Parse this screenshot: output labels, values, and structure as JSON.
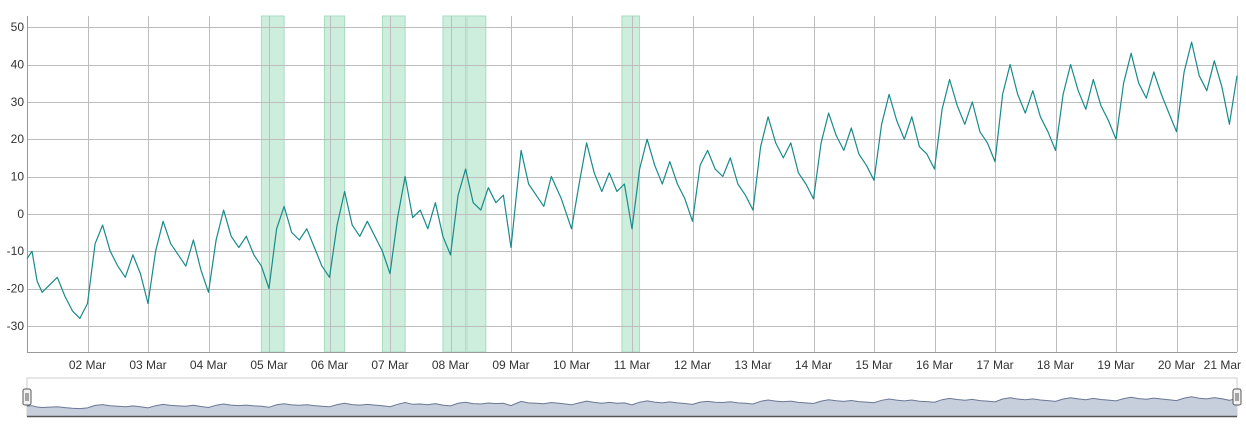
{
  "chart_data": {
    "type": "line",
    "title": "",
    "xlabel": "",
    "ylabel": "",
    "x_range": [
      "2021-03-01T00:00",
      "2021-03-21T00:00"
    ],
    "ylim": [
      -37,
      53
    ],
    "y_ticks": [
      -30,
      -20,
      -10,
      0,
      10,
      20,
      30,
      40,
      50
    ],
    "x_ticks": [
      {
        "date": "2021-03-02T00:00",
        "label": "02 Mar"
      },
      {
        "date": "2021-03-03T00:00",
        "label": "03 Mar"
      },
      {
        "date": "2021-03-04T00:00",
        "label": "04 Mar"
      },
      {
        "date": "2021-03-05T00:00",
        "label": "05 Mar"
      },
      {
        "date": "2021-03-06T00:00",
        "label": "06 Mar"
      },
      {
        "date": "2021-03-07T00:00",
        "label": "07 Mar"
      },
      {
        "date": "2021-03-08T00:00",
        "label": "08 Mar"
      },
      {
        "date": "2021-03-09T00:00",
        "label": "09 Mar"
      },
      {
        "date": "2021-03-10T00:00",
        "label": "10 Mar"
      },
      {
        "date": "2021-03-11T00:00",
        "label": "11 Mar"
      },
      {
        "date": "2021-03-12T00:00",
        "label": "12 Mar"
      },
      {
        "date": "2021-03-13T00:00",
        "label": "13 Mar"
      },
      {
        "date": "2021-03-14T00:00",
        "label": "14 Mar"
      },
      {
        "date": "2021-03-15T00:00",
        "label": "15 Mar"
      },
      {
        "date": "2021-03-16T00:00",
        "label": "16 Mar"
      },
      {
        "date": "2021-03-17T00:00",
        "label": "17 Mar"
      },
      {
        "date": "2021-03-18T00:00",
        "label": "18 Mar"
      },
      {
        "date": "2021-03-19T00:00",
        "label": "19 Mar"
      },
      {
        "date": "2021-03-20T00:00",
        "label": "20 Mar"
      },
      {
        "date": "2021-03-21T00:00",
        "label": "21 Mar"
      }
    ],
    "grid": true,
    "highlight_bands": [
      {
        "start": "2021-03-04T21:00",
        "end": "2021-03-05T06:00"
      },
      {
        "start": "2021-03-05T22:00",
        "end": "2021-03-06T06:00"
      },
      {
        "start": "2021-03-06T21:00",
        "end": "2021-03-07T06:00"
      },
      {
        "start": "2021-03-07T21:00",
        "end": "2021-03-08T06:00"
      },
      {
        "start": "2021-03-08T06:30",
        "end": "2021-03-08T14:00"
      },
      {
        "start": "2021-03-10T20:00",
        "end": "2021-03-11T03:00"
      }
    ],
    "series": [
      {
        "color": "#1a8a8a",
        "points": [
          [
            "2021-03-01T00:00",
            -12
          ],
          [
            "2021-03-01T02:00",
            -10
          ],
          [
            "2021-03-01T04:00",
            -18
          ],
          [
            "2021-03-01T06:00",
            -21
          ],
          [
            "2021-03-01T09:00",
            -19
          ],
          [
            "2021-03-01T12:00",
            -17
          ],
          [
            "2021-03-01T15:00",
            -22
          ],
          [
            "2021-03-01T18:00",
            -26
          ],
          [
            "2021-03-01T21:00",
            -28
          ],
          [
            "2021-03-02T00:00",
            -24
          ],
          [
            "2021-03-02T03:00",
            -8
          ],
          [
            "2021-03-02T06:00",
            -3
          ],
          [
            "2021-03-02T09:00",
            -10
          ],
          [
            "2021-03-02T12:00",
            -14
          ],
          [
            "2021-03-02T15:00",
            -17
          ],
          [
            "2021-03-02T18:00",
            -11
          ],
          [
            "2021-03-02T21:00",
            -16
          ],
          [
            "2021-03-03T00:00",
            -24
          ],
          [
            "2021-03-03T03:00",
            -10
          ],
          [
            "2021-03-03T06:00",
            -2
          ],
          [
            "2021-03-03T09:00",
            -8
          ],
          [
            "2021-03-03T12:00",
            -11
          ],
          [
            "2021-03-03T15:00",
            -14
          ],
          [
            "2021-03-03T18:00",
            -7
          ],
          [
            "2021-03-03T21:00",
            -15
          ],
          [
            "2021-03-04T00:00",
            -21
          ],
          [
            "2021-03-04T03:00",
            -7
          ],
          [
            "2021-03-04T06:00",
            1
          ],
          [
            "2021-03-04T09:00",
            -6
          ],
          [
            "2021-03-04T12:00",
            -9
          ],
          [
            "2021-03-04T15:00",
            -6
          ],
          [
            "2021-03-04T18:00",
            -11
          ],
          [
            "2021-03-04T21:00",
            -14
          ],
          [
            "2021-03-05T00:00",
            -20
          ],
          [
            "2021-03-05T03:00",
            -4
          ],
          [
            "2021-03-05T06:00",
            2
          ],
          [
            "2021-03-05T09:00",
            -5
          ],
          [
            "2021-03-05T12:00",
            -7
          ],
          [
            "2021-03-05T15:00",
            -4
          ],
          [
            "2021-03-05T18:00",
            -9
          ],
          [
            "2021-03-05T21:00",
            -14
          ],
          [
            "2021-03-06T00:00",
            -17
          ],
          [
            "2021-03-06T03:00",
            -3
          ],
          [
            "2021-03-06T06:00",
            6
          ],
          [
            "2021-03-06T09:00",
            -3
          ],
          [
            "2021-03-06T12:00",
            -6
          ],
          [
            "2021-03-06T15:00",
            -2
          ],
          [
            "2021-03-06T18:00",
            -6
          ],
          [
            "2021-03-06T21:00",
            -10
          ],
          [
            "2021-03-07T00:00",
            -16
          ],
          [
            "2021-03-07T03:00",
            -1
          ],
          [
            "2021-03-07T06:00",
            10
          ],
          [
            "2021-03-07T09:00",
            -1
          ],
          [
            "2021-03-07T12:00",
            1
          ],
          [
            "2021-03-07T15:00",
            -4
          ],
          [
            "2021-03-07T18:00",
            3
          ],
          [
            "2021-03-07T21:00",
            -6
          ],
          [
            "2021-03-08T00:00",
            -11
          ],
          [
            "2021-03-08T03:00",
            5
          ],
          [
            "2021-03-08T06:00",
            12
          ],
          [
            "2021-03-08T09:00",
            3
          ],
          [
            "2021-03-08T12:00",
            1
          ],
          [
            "2021-03-08T15:00",
            7
          ],
          [
            "2021-03-08T18:00",
            3
          ],
          [
            "2021-03-08T21:00",
            5
          ],
          [
            "2021-03-09T00:00",
            -9
          ],
          [
            "2021-03-09T02:00",
            4
          ],
          [
            "2021-03-09T04:00",
            17
          ],
          [
            "2021-03-09T07:00",
            8
          ],
          [
            "2021-03-09T10:00",
            5
          ],
          [
            "2021-03-09T13:00",
            2
          ],
          [
            "2021-03-09T16:00",
            10
          ],
          [
            "2021-03-09T20:00",
            4
          ],
          [
            "2021-03-10T00:00",
            -4
          ],
          [
            "2021-03-10T03:00",
            8
          ],
          [
            "2021-03-10T06:00",
            19
          ],
          [
            "2021-03-10T09:00",
            11
          ],
          [
            "2021-03-10T12:00",
            6
          ],
          [
            "2021-03-10T15:00",
            11
          ],
          [
            "2021-03-10T18:00",
            6
          ],
          [
            "2021-03-10T21:00",
            8
          ],
          [
            "2021-03-11T00:00",
            -4
          ],
          [
            "2021-03-11T03:00",
            12
          ],
          [
            "2021-03-11T06:00",
            20
          ],
          [
            "2021-03-11T09:00",
            13
          ],
          [
            "2021-03-11T12:00",
            8
          ],
          [
            "2021-03-11T15:00",
            14
          ],
          [
            "2021-03-11T18:00",
            8
          ],
          [
            "2021-03-11T21:00",
            4
          ],
          [
            "2021-03-12T00:00",
            -2
          ],
          [
            "2021-03-12T03:00",
            13
          ],
          [
            "2021-03-12T06:00",
            17
          ],
          [
            "2021-03-12T09:00",
            12
          ],
          [
            "2021-03-12T12:00",
            10
          ],
          [
            "2021-03-12T15:00",
            15
          ],
          [
            "2021-03-12T18:00",
            8
          ],
          [
            "2021-03-12T21:00",
            5
          ],
          [
            "2021-03-13T00:00",
            1
          ],
          [
            "2021-03-13T03:00",
            18
          ],
          [
            "2021-03-13T06:00",
            26
          ],
          [
            "2021-03-13T09:00",
            19
          ],
          [
            "2021-03-13T12:00",
            15
          ],
          [
            "2021-03-13T15:00",
            19
          ],
          [
            "2021-03-13T18:00",
            11
          ],
          [
            "2021-03-13T21:00",
            8
          ],
          [
            "2021-03-14T00:00",
            4
          ],
          [
            "2021-03-14T03:00",
            19
          ],
          [
            "2021-03-14T06:00",
            27
          ],
          [
            "2021-03-14T09:00",
            21
          ],
          [
            "2021-03-14T12:00",
            17
          ],
          [
            "2021-03-14T15:00",
            23
          ],
          [
            "2021-03-14T18:00",
            16
          ],
          [
            "2021-03-14T21:00",
            13
          ],
          [
            "2021-03-15T00:00",
            9
          ],
          [
            "2021-03-15T03:00",
            24
          ],
          [
            "2021-03-15T06:00",
            32
          ],
          [
            "2021-03-15T09:00",
            25
          ],
          [
            "2021-03-15T12:00",
            20
          ],
          [
            "2021-03-15T15:00",
            26
          ],
          [
            "2021-03-15T18:00",
            18
          ],
          [
            "2021-03-15T21:00",
            16
          ],
          [
            "2021-03-16T00:00",
            12
          ],
          [
            "2021-03-16T03:00",
            28
          ],
          [
            "2021-03-16T06:00",
            36
          ],
          [
            "2021-03-16T09:00",
            29
          ],
          [
            "2021-03-16T12:00",
            24
          ],
          [
            "2021-03-16T15:00",
            30
          ],
          [
            "2021-03-16T18:00",
            22
          ],
          [
            "2021-03-16T21:00",
            19
          ],
          [
            "2021-03-17T00:00",
            14
          ],
          [
            "2021-03-17T03:00",
            32
          ],
          [
            "2021-03-17T06:00",
            40
          ],
          [
            "2021-03-17T09:00",
            32
          ],
          [
            "2021-03-17T12:00",
            27
          ],
          [
            "2021-03-17T15:00",
            33
          ],
          [
            "2021-03-17T18:00",
            26
          ],
          [
            "2021-03-17T21:00",
            22
          ],
          [
            "2021-03-18T00:00",
            17
          ],
          [
            "2021-03-18T03:00",
            32
          ],
          [
            "2021-03-18T06:00",
            40
          ],
          [
            "2021-03-18T09:00",
            33
          ],
          [
            "2021-03-18T12:00",
            28
          ],
          [
            "2021-03-18T15:00",
            36
          ],
          [
            "2021-03-18T18:00",
            29
          ],
          [
            "2021-03-18T21:00",
            25
          ],
          [
            "2021-03-19T00:00",
            20
          ],
          [
            "2021-03-19T03:00",
            35
          ],
          [
            "2021-03-19T06:00",
            43
          ],
          [
            "2021-03-19T09:00",
            35
          ],
          [
            "2021-03-19T12:00",
            31
          ],
          [
            "2021-03-19T15:00",
            38
          ],
          [
            "2021-03-19T18:00",
            32
          ],
          [
            "2021-03-19T21:00",
            27
          ],
          [
            "2021-03-20T00:00",
            22
          ],
          [
            "2021-03-20T03:00",
            38
          ],
          [
            "2021-03-20T06:00",
            46
          ],
          [
            "2021-03-20T09:00",
            37
          ],
          [
            "2021-03-20T12:00",
            33
          ],
          [
            "2021-03-20T15:00",
            41
          ],
          [
            "2021-03-20T18:00",
            34
          ],
          [
            "2021-03-20T21:00",
            24
          ],
          [
            "2021-03-21T00:00",
            37
          ]
        ]
      }
    ]
  },
  "navigator": {
    "fill_color": "#c8cfdc",
    "line_color": "#6a7896",
    "handle_symbol": "‖"
  }
}
